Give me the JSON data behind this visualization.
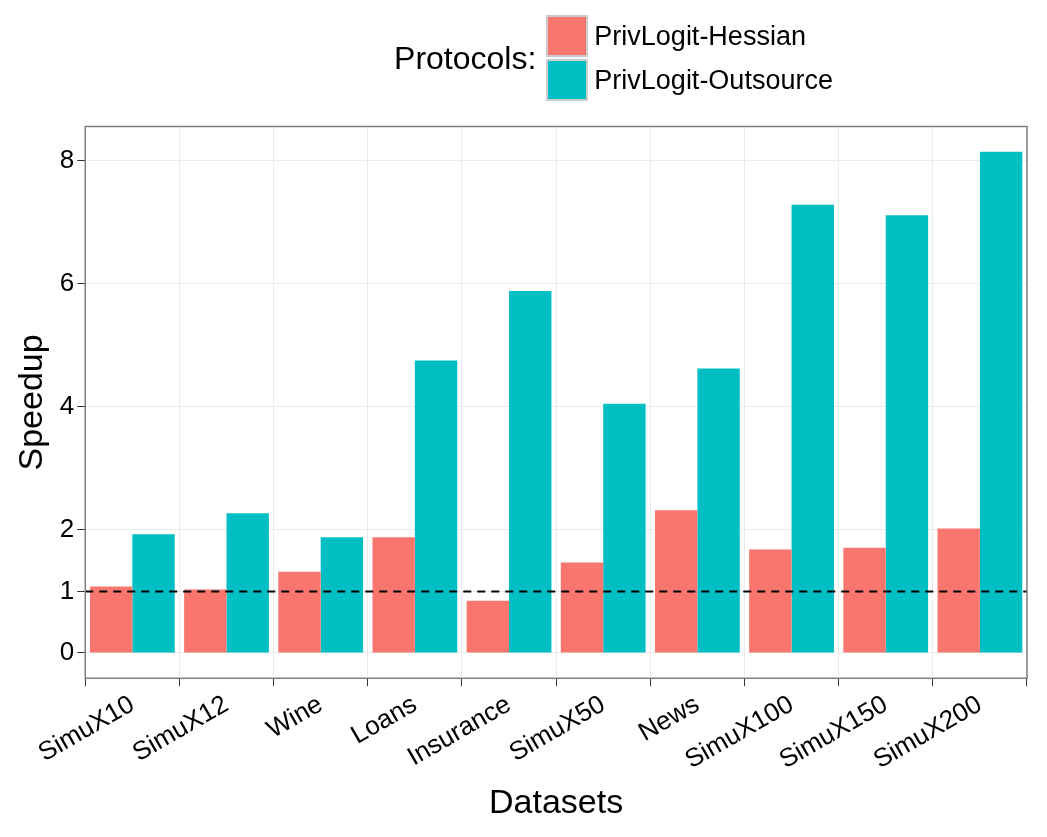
{
  "chart_data": {
    "type": "bar",
    "xlabel": "Datasets",
    "ylabel": "Speedup",
    "legend_title": "Protocols:",
    "legend": "top",
    "categories": [
      "SimuX10",
      "SimuX12",
      "Wine",
      "Loans",
      "Insurance",
      "SimuX50",
      "News",
      "SimuX100",
      "SimuX150",
      "SimuX200"
    ],
    "series": [
      {
        "name": "PrivLogit-Hessian",
        "color": "#f8766d",
        "values": [
          1.08,
          1.03,
          1.32,
          1.88,
          0.85,
          1.47,
          2.32,
          1.68,
          1.71,
          2.02
        ]
      },
      {
        "name": "PrivLogit-Outsource",
        "color": "#00bfc4",
        "values": [
          1.93,
          2.27,
          1.88,
          4.75,
          5.88,
          4.05,
          4.62,
          7.28,
          7.11,
          8.14
        ]
      }
    ],
    "ylim": [
      -0.41,
      8.55
    ],
    "yticks": [
      0,
      1,
      2,
      4,
      6,
      8
    ],
    "grid": true,
    "ref_lines": [
      {
        "axis": "y",
        "value": 1,
        "line_style": "dashed",
        "color": "#000000"
      }
    ]
  }
}
